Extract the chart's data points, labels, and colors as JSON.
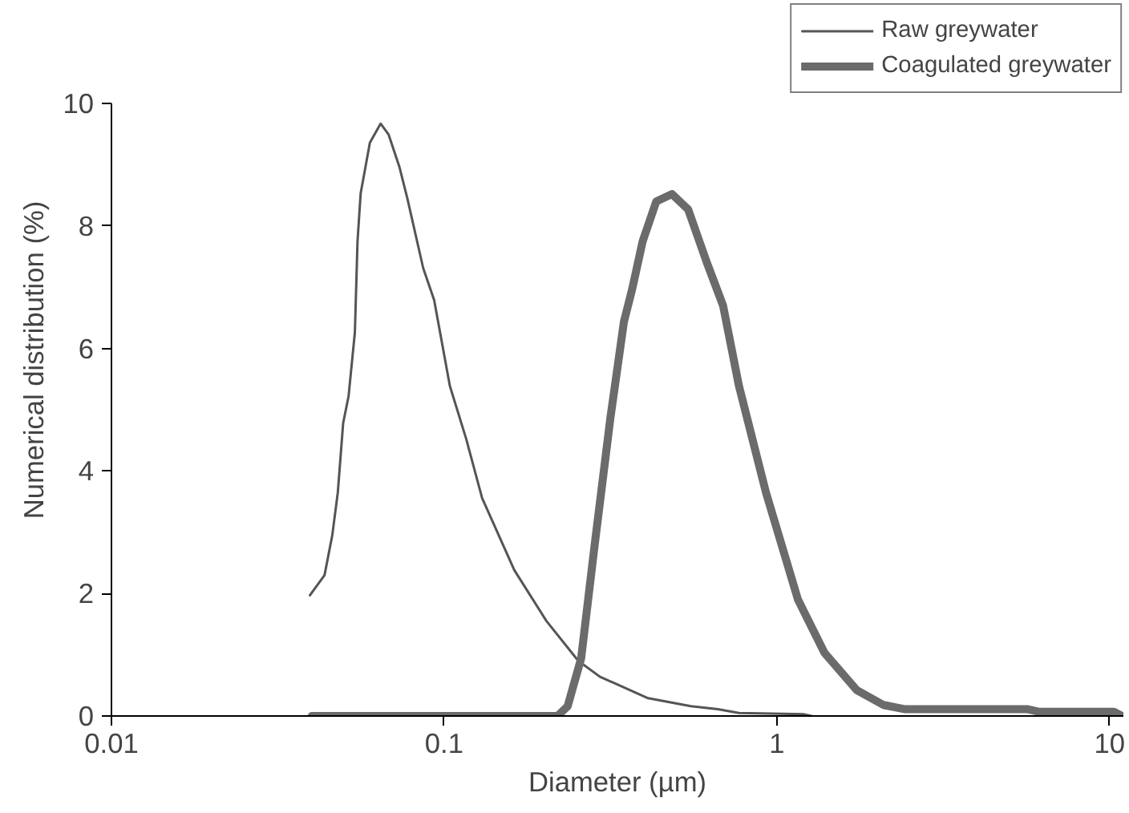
{
  "chart_data": {
    "type": "line",
    "xlabel": "Diameter (µm)",
    "ylabel": "Numerical distribution (%)",
    "log": "x",
    "xlim": [
      0.01,
      11
    ],
    "xticks": [
      0.01,
      0.1,
      1,
      10
    ],
    "ylim": [
      0,
      10
    ],
    "yticks": [
      0,
      2,
      4,
      6,
      8,
      10
    ],
    "grid": false,
    "legend": "top right",
    "marker": "none",
    "line_style": "solid",
    "series": [
      {
        "name": "Raw greywater",
        "color": "#555555",
        "x": [
          0.0395,
          0.0437,
          0.0461,
          0.0479,
          0.0497,
          0.0516,
          0.0539,
          0.0549,
          0.0561,
          0.0598,
          0.0644,
          0.0681,
          0.0733,
          0.0775,
          0.0865,
          0.0933,
          0.104,
          0.1165,
          0.13,
          0.1625,
          0.203,
          0.253,
          0.294,
          0.41,
          0.551,
          0.664,
          0.769,
          1.2,
          1.27
        ],
        "values": [
          1.97,
          2.3,
          2.95,
          3.65,
          4.78,
          5.22,
          6.26,
          7.75,
          8.53,
          9.36,
          9.67,
          9.49,
          8.97,
          8.45,
          7.31,
          6.79,
          5.39,
          4.52,
          3.56,
          2.38,
          1.55,
          0.9,
          0.64,
          0.29,
          0.16,
          0.11,
          0.05,
          0.03,
          0
        ]
      },
      {
        "name": "Coagulated greywater",
        "color": "#6b6b6b",
        "x": [
          0.04,
          0.2,
          0.219,
          0.235,
          0.258,
          0.283,
          0.316,
          0.347,
          0.367,
          0.395,
          0.434,
          0.484,
          0.541,
          0.616,
          0.689,
          0.769,
          0.927,
          1.157,
          1.39,
          1.74,
          2.09,
          2.43,
          5.68,
          6.12,
          10.3,
          10.9
        ],
        "values": [
          0,
          0,
          0,
          0.16,
          0.94,
          2.77,
          4.87,
          6.44,
          6.96,
          7.75,
          8.4,
          8.52,
          8.27,
          7.4,
          6.7,
          5.39,
          3.65,
          1.9,
          1.03,
          0.42,
          0.18,
          0.11,
          0.11,
          0.07,
          0.07,
          0
        ]
      }
    ]
  }
}
